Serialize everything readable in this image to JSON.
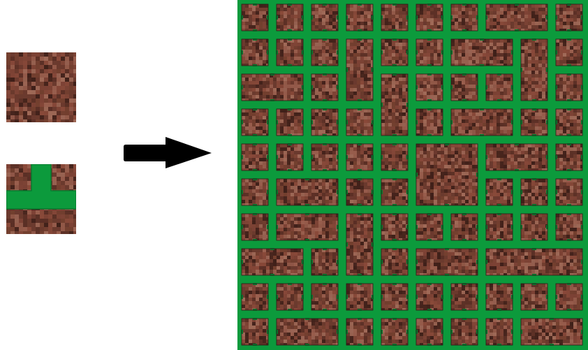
{
  "palette": {
    "brick_base": "#6b3a2e",
    "brick_light": "#9a5f4e",
    "brick_dark": "#3f2019",
    "brick_mid": "#7f4436",
    "mortar": "#0c9a3c",
    "mortar_edge": "#087a2f",
    "arrow": "#000000",
    "background": "#ffffff"
  },
  "icons": {
    "input_tile_plain": "brick-texture-tile-icon",
    "input_tile_junction": "t-junction-mortar-tile-icon",
    "transform_arrow": "right-arrow-icon",
    "output": "stone-wall-pattern-icon"
  }
}
